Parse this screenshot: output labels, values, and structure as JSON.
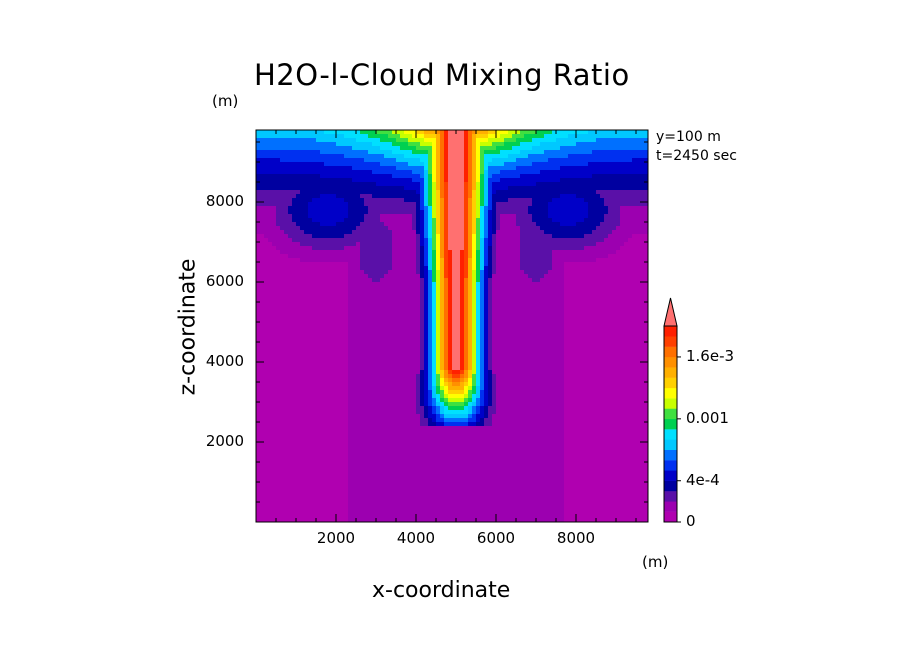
{
  "chart_data": {
    "type": "heatmap",
    "title": "H2O-l-Cloud Mixing Ratio",
    "xlabel": "x-coordinate",
    "ylabel": "z-coordinate",
    "x_unit": "(m)",
    "y_unit": "(m)",
    "annotations": [
      "y=100 m",
      "t=2450 sec"
    ],
    "xlim": [
      0,
      9800
    ],
    "ylim": [
      0,
      9800
    ],
    "xticks": [
      "2000",
      "4000",
      "6000",
      "8000"
    ],
    "xtick_values": [
      2000,
      4000,
      6000,
      8000
    ],
    "yticks": [
      "2000",
      "4000",
      "6000",
      "8000"
    ],
    "ytick_values": [
      2000,
      4000,
      6000,
      8000
    ],
    "colorbar": {
      "levels": [
        0,
        0.0001,
        0.0002,
        0.0003,
        0.0004,
        0.0005,
        0.0006,
        0.0007,
        0.0008,
        0.0009,
        0.001,
        0.0011,
        0.0012,
        0.0013,
        0.0014,
        0.0015,
        0.0016,
        0.0017,
        0.0018,
        0.0019,
        0.002
      ],
      "colors": [
        "#b000b0",
        "#9c00b0",
        "#5a10a8",
        "#0000a0",
        "#0000c8",
        "#0030f0",
        "#0070ff",
        "#00c8ff",
        "#00e0ff",
        "#00d050",
        "#40e040",
        "#c8ff00",
        "#ffff00",
        "#ffd000",
        "#ffb000",
        "#ff9000",
        "#ff7000",
        "#ff4000",
        "#ff2000",
        "#ff7070"
      ],
      "tick_labels": [
        "0",
        "4e-4",
        "0.001",
        "1.6e-3"
      ],
      "tick_values": [
        0,
        0.0004,
        0.001,
        0.0016
      ],
      "extend": "max"
    },
    "fields": {
      "description_note": "",
      "column": {
        "center_x": 5000,
        "core_top_z": 9800,
        "core_bottom_z": 3900,
        "cloud_base_z": 2650,
        "peak_value": 0.002
      },
      "anvil": {
        "top_z": 9800,
        "left_lobe_x": 1800,
        "right_lobe_x": 7800,
        "lobe_z": 7800
      }
    }
  }
}
